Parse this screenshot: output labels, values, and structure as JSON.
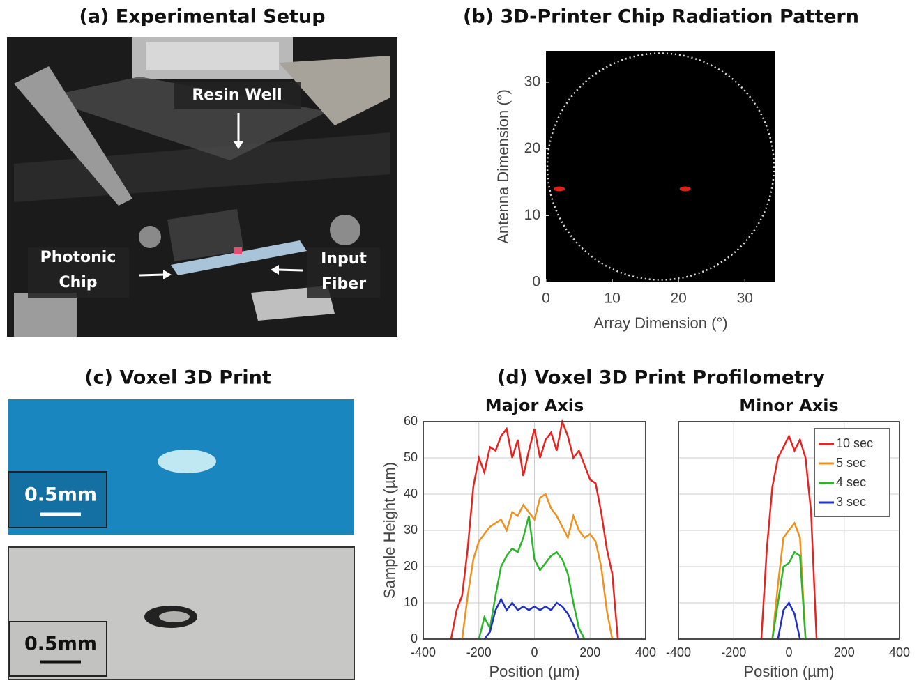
{
  "photo_a": {
    "title": "(a) Experimental Setup",
    "labels": [
      [
        "Resin Well"
      ],
      [
        "Photonic",
        "Chip"
      ],
      [
        "Input",
        "Fiber"
      ]
    ]
  },
  "photo_c": {
    "title": "(c) Voxel 3D Print",
    "scale_labels": [
      "0.5mm",
      "0.5mm"
    ]
  },
  "panel_d_title": "(d) Voxel 3D Print Profilometry",
  "chart_data": [
    {
      "type": "scatter",
      "title": "(b) 3D-Printer Chip Radiation Pattern",
      "x_label": "Array Dimension (°)",
      "y_label": "Antenna Dimension (°)",
      "x": [
        2,
        21
      ],
      "values": [
        14,
        14
      ],
      "color": "#e0201a",
      "xlim": [
        0,
        34.6
      ],
      "ylim": [
        0,
        34.7
      ],
      "xticks": [
        0,
        10,
        20,
        30
      ],
      "yticks": [
        0,
        10,
        20,
        30
      ]
    },
    {
      "type": "line",
      "title": "Major Axis",
      "x_label": "Position (µm)",
      "y_label": "Sample  Height  (µm)",
      "x": [
        -300,
        -280,
        -260,
        -240,
        -220,
        -200,
        -180,
        -160,
        -140,
        -120,
        -100,
        -80,
        -60,
        -40,
        -20,
        0,
        20,
        40,
        60,
        80,
        100,
        120,
        140,
        160,
        180,
        200,
        220,
        240,
        260,
        280,
        300
      ],
      "series": [
        {
          "name": "10 sec",
          "color": "#e8231f",
          "values": [
            0,
            8,
            12,
            25,
            42,
            50,
            46,
            53,
            52,
            56,
            58,
            50,
            55,
            45,
            52,
            58,
            50,
            55,
            57,
            52,
            60,
            56,
            50,
            52,
            48,
            44,
            43,
            35,
            25,
            18,
            0
          ]
        },
        {
          "name": "5 sec",
          "color": "#f0901e",
          "values": [
            null,
            null,
            0,
            12,
            22,
            27,
            29,
            31,
            32,
            33,
            30,
            35,
            34,
            37,
            35,
            33,
            39,
            40,
            36,
            34,
            31,
            28,
            34,
            30,
            28,
            29,
            27,
            20,
            8,
            0,
            null
          ]
        },
        {
          "name": "4 sec",
          "color": "#2ab52a",
          "values": [
            null,
            null,
            null,
            null,
            null,
            0,
            6,
            3,
            12,
            20,
            23,
            25,
            24,
            28,
            34,
            22,
            19,
            21,
            23,
            24,
            22,
            18,
            10,
            3,
            0,
            null,
            null,
            null,
            null,
            null,
            null
          ]
        },
        {
          "name": "3 sec",
          "color": "#1f2fc8",
          "values": [
            null,
            null,
            null,
            null,
            null,
            null,
            0,
            2,
            8,
            11,
            8,
            10,
            8,
            9,
            8,
            9,
            8,
            9,
            8,
            10,
            9,
            7,
            4,
            0,
            null,
            null,
            null,
            null,
            null,
            null,
            null
          ]
        }
      ],
      "xlim": [
        -400,
        400
      ],
      "ylim": [
        0,
        60
      ],
      "xticks": [
        -400,
        -200,
        0,
        200,
        400
      ],
      "yticks": [
        0,
        10,
        20,
        30,
        40,
        50,
        60
      ],
      "grid": true
    },
    {
      "type": "line",
      "title": "Minor Axis",
      "x_label": "Position (µm)",
      "x": [
        -100,
        -80,
        -60,
        -40,
        -20,
        0,
        20,
        40,
        60,
        80,
        100
      ],
      "series": [
        {
          "name": "10 sec",
          "color": "#e8231f",
          "values": [
            0,
            25,
            42,
            50,
            53,
            56,
            52,
            55,
            50,
            35,
            0
          ]
        },
        {
          "name": "5 sec",
          "color": "#f0901e",
          "values": [
            null,
            null,
            0,
            15,
            28,
            30,
            32,
            28,
            0,
            null,
            null
          ]
        },
        {
          "name": "4 sec",
          "color": "#2ab52a",
          "values": [
            null,
            null,
            0,
            10,
            20,
            21,
            24,
            23,
            0,
            null,
            null
          ]
        },
        {
          "name": "3 sec",
          "color": "#1f2fc8",
          "values": [
            null,
            null,
            null,
            0,
            8,
            10,
            7,
            0,
            null,
            null,
            null
          ]
        }
      ],
      "xlim": [
        -400,
        400
      ],
      "ylim": [
        0,
        60
      ],
      "xticks": [
        -400,
        -200,
        0,
        200,
        400
      ],
      "yticks": [
        0,
        10,
        20,
        30,
        40,
        50,
        60
      ],
      "ytick_labels": false,
      "grid": true,
      "legend": "upper right"
    }
  ]
}
